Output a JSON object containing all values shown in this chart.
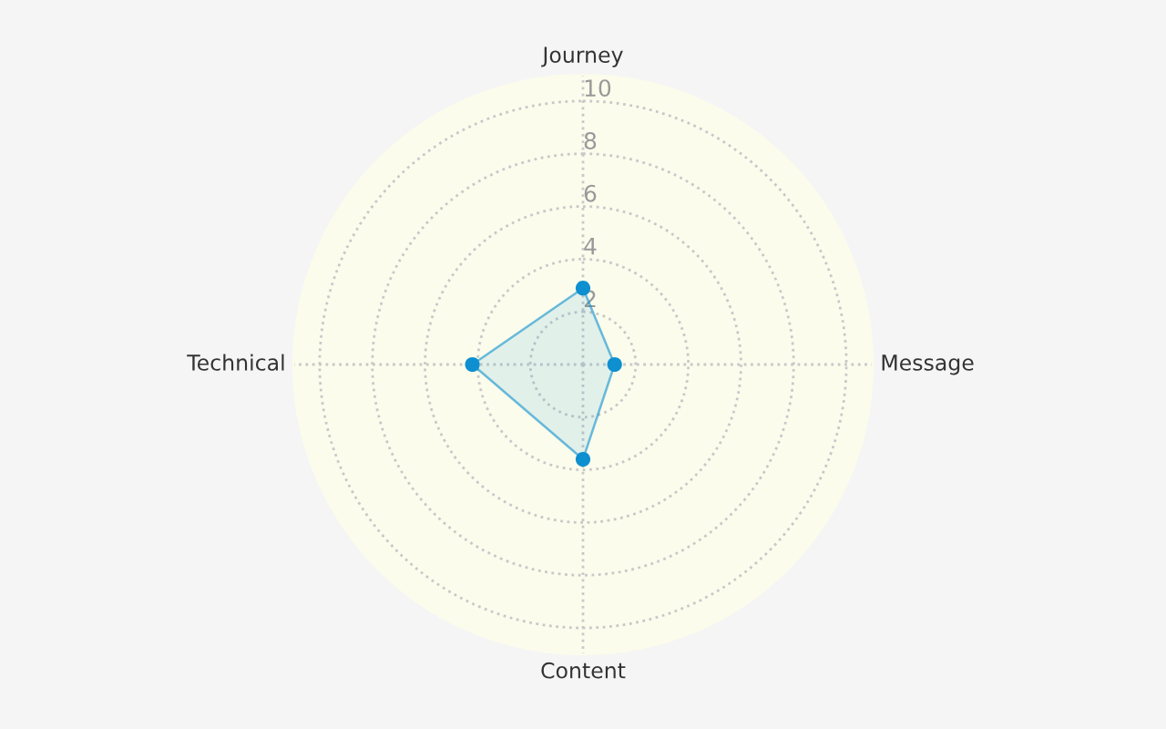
{
  "chart_data": {
    "type": "radar",
    "categories": [
      "Journey",
      "Message",
      "Content",
      "Technical"
    ],
    "series": [
      {
        "color": "#0e8fd0",
        "values": [
          2.9,
          1.2,
          3.6,
          4.2
        ]
      }
    ],
    "ylim": [
      0,
      11
    ],
    "yticks": [
      2,
      4,
      6,
      8,
      10
    ],
    "grid": true,
    "marker": "circle",
    "line_style": "solid"
  }
}
